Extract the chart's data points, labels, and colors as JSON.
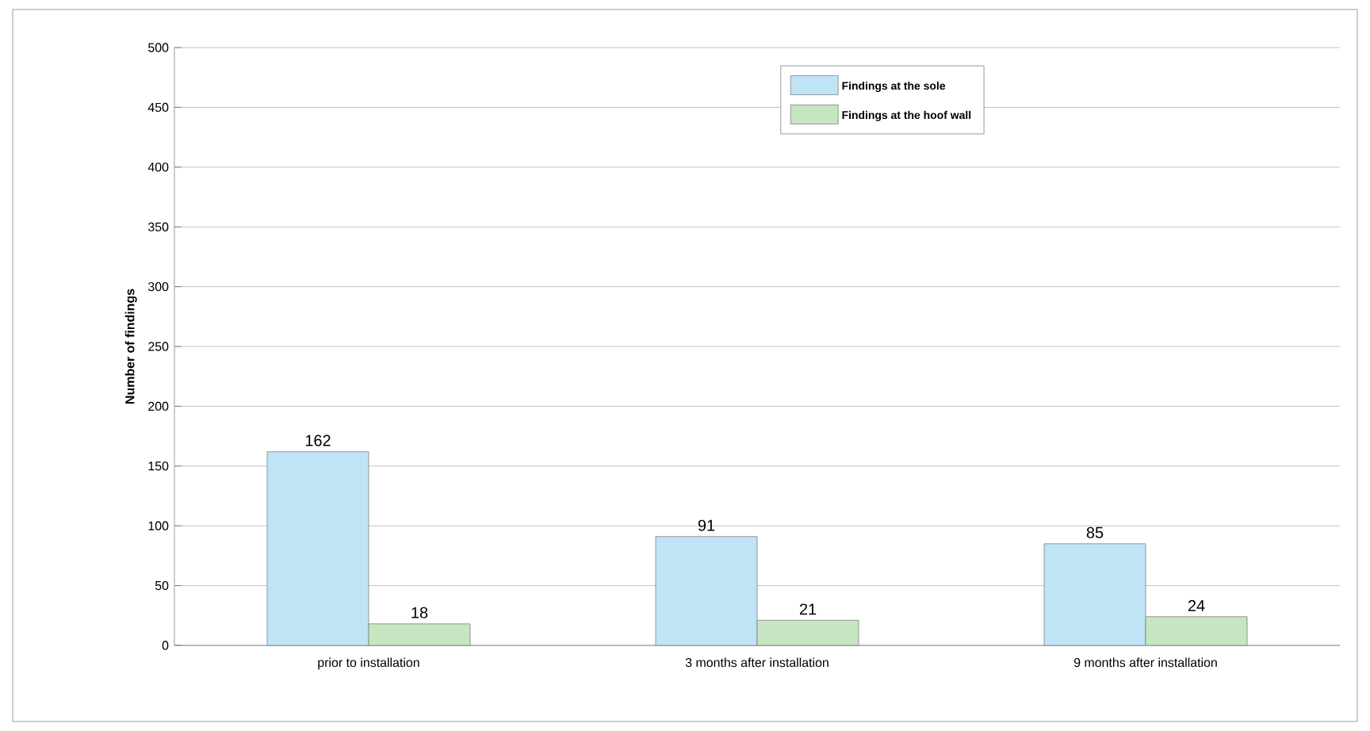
{
  "chart_data": {
    "type": "bar",
    "ylabel": "Number of findings",
    "categories": [
      "prior to installation",
      "3 months after installation",
      "9 months after installation"
    ],
    "series": [
      {
        "name": "Findings at the sole",
        "color": "#bfe4f6",
        "values": [
          162,
          91,
          85
        ]
      },
      {
        "name": "Findings at the hoof wall",
        "color": "#c6e6c2",
        "values": [
          18,
          21,
          24
        ]
      }
    ],
    "ylim": [
      0,
      500
    ],
    "yticks": [
      0,
      50,
      100,
      150,
      200,
      250,
      300,
      350,
      400,
      450,
      500
    ],
    "grid": "y",
    "legend": "top right",
    "data_labels": true
  }
}
